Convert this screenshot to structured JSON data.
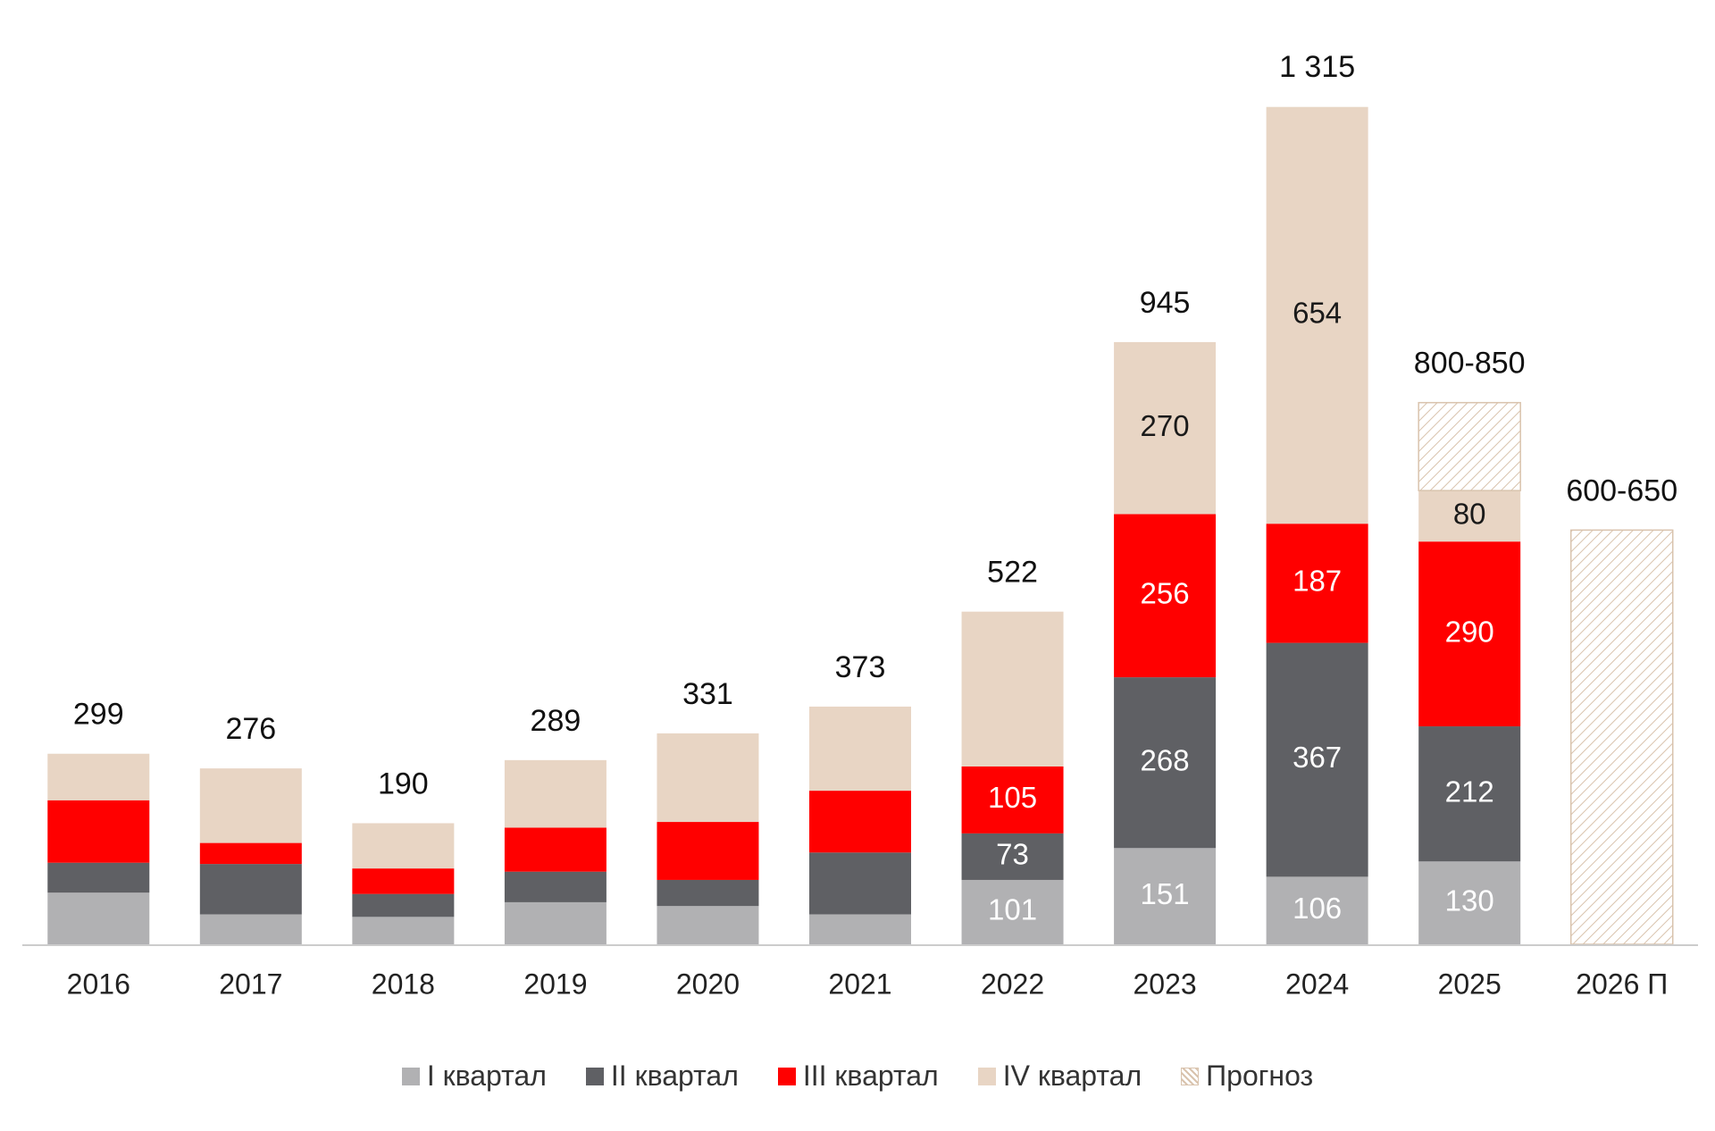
{
  "chart_data": {
    "type": "stacked_bar",
    "categories": [
      "2016",
      "2017",
      "2018",
      "2019",
      "2020",
      "2021",
      "2022",
      "2023",
      "2024",
      "2025",
      "2026 П"
    ],
    "series": [
      {
        "name": "I квартал",
        "color": "#b1b1b3",
        "label_color": "#ffffff",
        "values": [
          81,
          47,
          43,
          66,
          60,
          47,
          101,
          151,
          106,
          130,
          null
        ],
        "value_labels": [
          null,
          null,
          null,
          null,
          null,
          null,
          "101",
          "151",
          "106",
          "130",
          null
        ]
      },
      {
        "name": "II квартал",
        "color": "#5f6064",
        "label_color": "#ffffff",
        "values": [
          47,
          79,
          36,
          48,
          41,
          97,
          73,
          268,
          367,
          212,
          null
        ],
        "value_labels": [
          null,
          null,
          null,
          null,
          null,
          null,
          "73",
          "268",
          "367",
          "212",
          null
        ]
      },
      {
        "name": "III квартал",
        "color": "#ff0000",
        "label_color": "#ffffff",
        "values": [
          98,
          33,
          40,
          69,
          91,
          97,
          105,
          256,
          187,
          290,
          null
        ],
        "value_labels": [
          null,
          null,
          null,
          null,
          null,
          null,
          "105",
          "256",
          "187",
          "290",
          null
        ]
      },
      {
        "name": "IV квартал",
        "color": "#e8d5c4",
        "label_color": "#1a1a1a",
        "values": [
          73,
          117,
          71,
          106,
          139,
          132,
          243,
          270,
          654,
          80,
          null
        ],
        "value_labels": [
          null,
          null,
          null,
          null,
          null,
          null,
          null,
          "270",
          "654",
          "80",
          null
        ]
      },
      {
        "name": "Прогноз",
        "color": "#d9c3ad",
        "hatch": true,
        "values": [
          null,
          null,
          null,
          null,
          null,
          null,
          null,
          null,
          null,
          138,
          650
        ]
      }
    ],
    "totals": {
      "values": [
        299,
        276,
        190,
        289,
        331,
        373,
        522,
        945,
        1315,
        850,
        650
      ],
      "value_labels": [
        "299",
        "276",
        "190",
        "289",
        "331",
        "373",
        "522",
        "945",
        "1 315",
        "800-850",
        "600-650"
      ]
    },
    "ylim": [
      0,
      1315
    ]
  }
}
